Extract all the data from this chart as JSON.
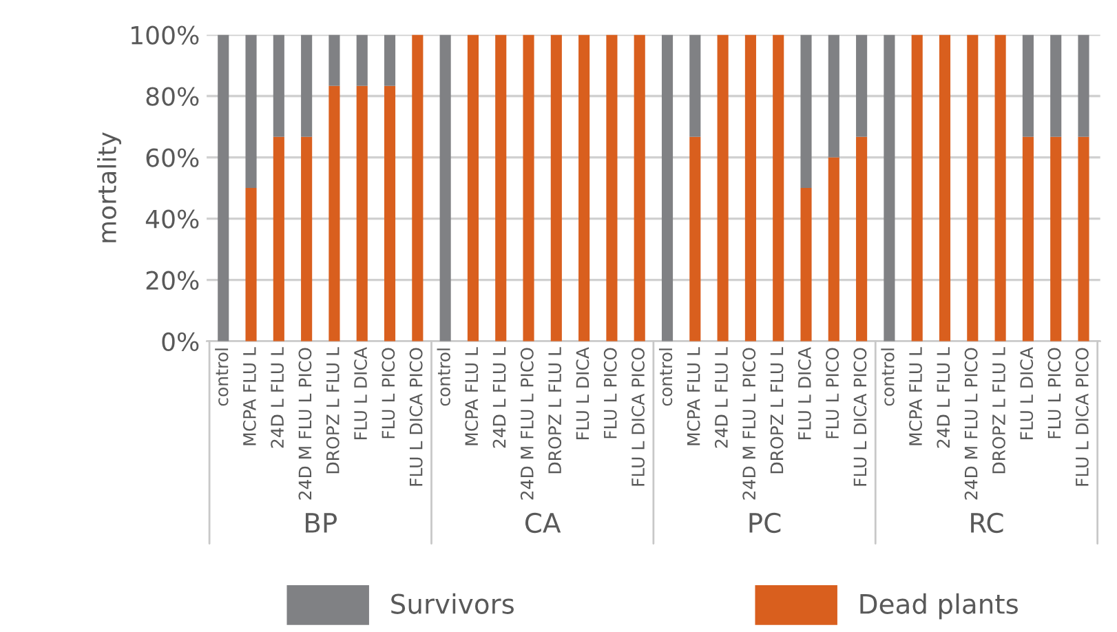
{
  "chart_data": {
    "type": "bar",
    "stacked": true,
    "ylabel": "mortality",
    "categories": [
      "control",
      "MCPA FLU L",
      "24D L FLU L",
      "24D M FLU L PICO",
      "DROPZ L FLU L",
      "FLU L DICA",
      "FLU L PICO",
      "FLU L DICA PICO",
      "control",
      "MCPA FLU L",
      "24D L FLU L",
      "24D M FLU L PICO",
      "DROPZ L FLU L",
      "FLU L DICA",
      "FLU L PICO",
      "FLU L DICA PICO",
      "control",
      "MCPA FLU L",
      "24D L FLU L",
      "24D M FLU L PICO",
      "DROPZ L FLU L",
      "FLU L DICA",
      "FLU L PICO",
      "FLU L DICA PICO",
      "control",
      "MCPA FLU L",
      "24D L FLU L",
      "24D M FLU L PICO",
      "DROPZ L FLU L",
      "FLU L DICA",
      "FLU L PICO",
      "FLU L DICA PICO"
    ],
    "series": [
      {
        "name": "Dead plants",
        "color": "#d95f1e",
        "values": [
          0,
          50,
          66.7,
          66.7,
          83.3,
          83.3,
          83.3,
          100,
          0,
          100,
          100,
          100,
          100,
          100,
          100,
          100,
          0,
          66.7,
          100,
          100,
          100,
          50,
          60,
          66.7,
          0,
          100,
          100,
          100,
          100,
          66.7,
          66.7,
          66.7
        ]
      },
      {
        "name": "Survivors",
        "color": "#808184",
        "values": [
          100,
          50,
          33.3,
          33.3,
          16.7,
          16.7,
          16.7,
          0,
          100,
          0,
          0,
          0,
          0,
          0,
          0,
          0,
          100,
          33.3,
          0,
          0,
          0,
          50,
          40,
          33.3,
          100,
          0,
          0,
          0,
          0,
          33.3,
          33.3,
          33.3
        ]
      }
    ],
    "annotations": [
      "BP",
      "CA",
      "PC",
      "RC"
    ],
    "ylim": [
      0,
      100
    ],
    "yticks": [
      {
        "value": 0,
        "label": "0%"
      },
      {
        "value": 20,
        "label": "20%"
      },
      {
        "value": 40,
        "label": "40%"
      },
      {
        "value": 60,
        "label": "60%"
      },
      {
        "value": 80,
        "label": "80%"
      },
      {
        "value": 100,
        "label": "100%"
      }
    ],
    "grid": "y",
    "legend": "bottom"
  }
}
